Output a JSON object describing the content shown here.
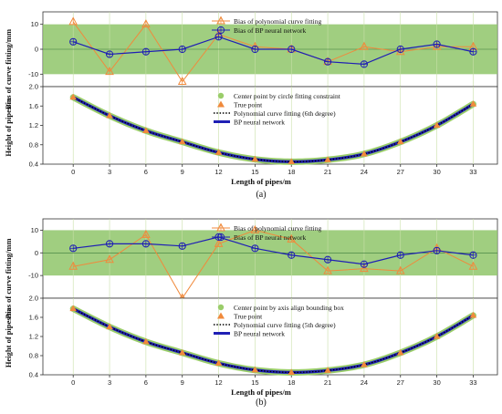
{
  "chart_data": [
    {
      "type": "line",
      "panel": "a-bias",
      "ylabel": "Bias of curve fitting/mm",
      "ylim": [
        -15,
        15
      ],
      "yticks": [
        "10",
        "0",
        "-10"
      ],
      "band": [
        -10,
        10
      ],
      "x": [
        0,
        3,
        6,
        9,
        12,
        15,
        18,
        21,
        24,
        27,
        30,
        33
      ],
      "series": [
        {
          "name": "Bias of polynomial curve fitting",
          "color": "#f08a3c",
          "values": [
            11,
            -9,
            10,
            -13,
            6,
            1,
            0,
            -5,
            1,
            -1,
            1,
            1
          ]
        },
        {
          "name": "Bias of BP neural network",
          "color": "#1f1fb4",
          "values": [
            3,
            -2,
            -1,
            0,
            5,
            0,
            0,
            -5,
            -6,
            0,
            2,
            -1
          ]
        }
      ]
    },
    {
      "type": "line",
      "panel": "a-height",
      "xlabel": "Length of pipes/m",
      "ylabel": "Height of pipes/m",
      "ylim": [
        0.4,
        2.0
      ],
      "yticks": [
        "2.0",
        "1.6",
        "1.2",
        "0.8",
        "0.4"
      ],
      "xticks": [
        "0",
        "3",
        "6",
        "9",
        "12",
        "15",
        "18",
        "21",
        "24",
        "27",
        "30",
        "33"
      ],
      "x": [
        0,
        3,
        6,
        9,
        12,
        15,
        18,
        21,
        24,
        27,
        30,
        33
      ],
      "values": [
        1.78,
        1.4,
        1.09,
        0.86,
        0.64,
        0.5,
        0.45,
        0.49,
        0.61,
        0.86,
        1.2,
        1.64
      ],
      "series": [
        {
          "name": "Center point by circle fitting constraint",
          "color": "#9acd6a"
        },
        {
          "name": "True point",
          "color": "#f08a3c"
        },
        {
          "name": "Polynomial curve fitting (6th degree)",
          "color": "#000000"
        },
        {
          "name": "BP neural network",
          "color": "#1f1fb4"
        }
      ]
    },
    {
      "type": "line",
      "panel": "b-bias",
      "ylabel": "Bias of curve fitting/mm",
      "ylim": [
        -20,
        15
      ],
      "yticks": [
        "10",
        "0",
        "-10"
      ],
      "band": [
        -10,
        10
      ],
      "x": [
        0,
        3,
        6,
        9,
        12,
        15,
        18,
        21,
        24,
        27,
        30,
        33
      ],
      "series": [
        {
          "name": "Bias of polynomial curve fitting",
          "color": "#f08a3c",
          "values": [
            -6,
            -3,
            8,
            -20,
            4,
            10,
            6,
            -8,
            -7,
            -8,
            2,
            -6
          ]
        },
        {
          "name": "Bias of BP neural network",
          "color": "#1f1fb4",
          "values": [
            2,
            4,
            4,
            3,
            7,
            2,
            -1,
            -3,
            -5,
            -1,
            1,
            -1
          ]
        }
      ]
    },
    {
      "type": "line",
      "panel": "b-height",
      "xlabel": "Length of pipes/m",
      "ylabel": "Height of pipes/m",
      "ylim": [
        0.4,
        2.0
      ],
      "yticks": [
        "2.0",
        "1.6",
        "1.2",
        "0.8",
        "0.4"
      ],
      "xticks": [
        "0",
        "3",
        "6",
        "9",
        "12",
        "15",
        "18",
        "21",
        "24",
        "27",
        "30",
        "33"
      ],
      "x": [
        0,
        3,
        6,
        9,
        12,
        15,
        18,
        21,
        24,
        27,
        30,
        33
      ],
      "values": [
        1.78,
        1.4,
        1.09,
        0.86,
        0.64,
        0.5,
        0.45,
        0.49,
        0.61,
        0.86,
        1.2,
        1.64
      ],
      "series": [
        {
          "name": "Center point by axis align bounding box",
          "color": "#9acd6a"
        },
        {
          "name": "True point",
          "color": "#f08a3c"
        },
        {
          "name": "Polynomial curve fitting (5th degree)",
          "color": "#000000"
        },
        {
          "name": "BP neural network",
          "color": "#1f1fb4"
        }
      ]
    }
  ],
  "captions": {
    "a": "(a)",
    "b": "(b)"
  },
  "colors": {
    "band": "#8fc56a",
    "grid": "#c8e0a8"
  }
}
